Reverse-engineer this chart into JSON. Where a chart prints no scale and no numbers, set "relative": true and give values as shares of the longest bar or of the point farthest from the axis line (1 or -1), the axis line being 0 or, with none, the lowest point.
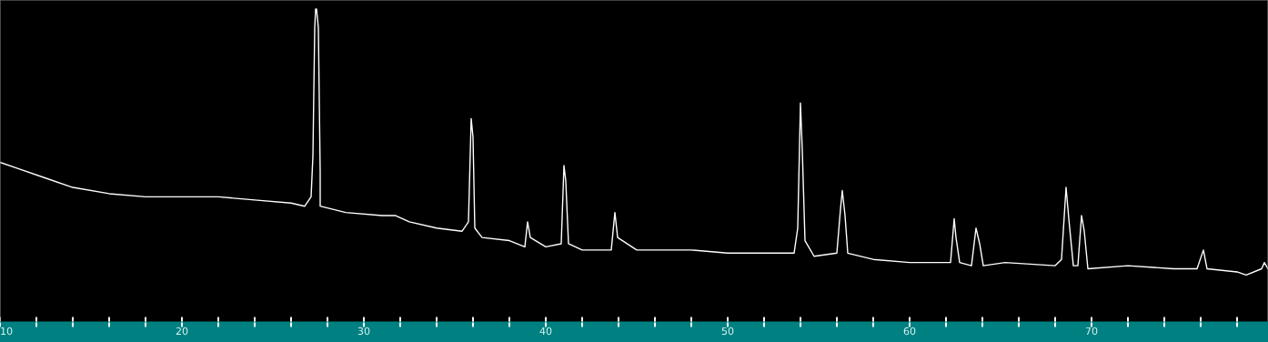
{
  "chart_data": {
    "type": "line",
    "relative": true,
    "grid": false,
    "legend": false,
    "marker": "none",
    "line_style": "solid",
    "xlim": [
      10,
      79.7
    ],
    "xticks": [
      10,
      {
        "value": 12,
        "label": null
      },
      {
        "value": 14,
        "label": null
      },
      {
        "value": 16,
        "label": null
      },
      {
        "value": 18,
        "label": null
      },
      20,
      {
        "value": 22,
        "label": null
      },
      {
        "value": 24,
        "label": null
      },
      {
        "value": 26,
        "label": null
      },
      {
        "value": 28,
        "label": null
      },
      30,
      {
        "value": 32,
        "label": null
      },
      {
        "value": 34,
        "label": null
      },
      {
        "value": 36,
        "label": null
      },
      {
        "value": 38,
        "label": null
      },
      40,
      {
        "value": 42,
        "label": null
      },
      {
        "value": 44,
        "label": null
      },
      {
        "value": 46,
        "label": null
      },
      {
        "value": 48,
        "label": null
      },
      50,
      {
        "value": 52,
        "label": null
      },
      {
        "value": 54,
        "label": null
      },
      {
        "value": 56,
        "label": null
      },
      {
        "value": 58,
        "label": null
      },
      60,
      {
        "value": 62,
        "label": null
      },
      {
        "value": 64,
        "label": null
      },
      {
        "value": 66,
        "label": null
      },
      {
        "value": 68,
        "label": null
      },
      70,
      {
        "value": 72,
        "label": null
      },
      {
        "value": 74,
        "label": null
      },
      {
        "value": 76,
        "label": null
      },
      {
        "value": 78,
        "label": null
      }
    ],
    "series": [
      {
        "color": "#ffffff",
        "x": [
          10.0,
          11.0,
          12.5,
          14.0,
          16.0,
          18.0,
          20.0,
          22.0,
          24.0,
          26.0,
          26.75,
          27.1,
          27.2,
          27.3,
          27.35,
          27.4,
          27.5,
          27.6,
          27.6,
          29.0,
          31.0,
          31.75,
          32.5,
          34.0,
          35.4,
          35.75,
          35.9,
          36.0,
          36.1,
          36.5,
          38.0,
          38.85,
          39.0,
          39.15,
          40.0,
          40.85,
          41.0,
          41.1,
          41.25,
          42.0,
          43.6,
          43.8,
          43.95,
          45.0,
          48.0,
          50.0,
          52.0,
          53.65,
          53.85,
          54.0,
          54.1,
          54.25,
          54.75,
          56.0,
          56.2,
          56.3,
          56.45,
          56.6,
          58.0,
          60.0,
          62.25,
          62.45,
          62.55,
          62.75,
          63.4,
          63.65,
          63.85,
          64.05,
          65.25,
          68.0,
          68.35,
          68.6,
          68.75,
          69.0,
          69.25,
          69.45,
          69.6,
          69.8,
          72.0,
          74.5,
          75.8,
          76.15,
          76.35,
          78.0,
          78.5,
          79.35,
          79.5,
          79.7
        ],
        "values": [
          0.51,
          0.49,
          0.46,
          0.43,
          0.41,
          0.4,
          0.4,
          0.4,
          0.39,
          0.38,
          0.37,
          0.4,
          0.53,
          0.94,
          1.0,
          1.0,
          0.94,
          0.48,
          0.37,
          0.35,
          0.34,
          0.34,
          0.32,
          0.3,
          0.29,
          0.32,
          0.65,
          0.59,
          0.3,
          0.27,
          0.26,
          0.24,
          0.32,
          0.27,
          0.24,
          0.25,
          0.5,
          0.45,
          0.25,
          0.23,
          0.23,
          0.35,
          0.27,
          0.23,
          0.23,
          0.22,
          0.22,
          0.22,
          0.3,
          0.7,
          0.55,
          0.26,
          0.21,
          0.22,
          0.36,
          0.42,
          0.34,
          0.22,
          0.2,
          0.19,
          0.19,
          0.33,
          0.27,
          0.19,
          0.18,
          0.3,
          0.25,
          0.18,
          0.19,
          0.18,
          0.2,
          0.43,
          0.33,
          0.18,
          0.18,
          0.34,
          0.29,
          0.17,
          0.18,
          0.17,
          0.17,
          0.23,
          0.17,
          0.16,
          0.15,
          0.17,
          0.19,
          0.17
        ]
      }
    ]
  }
}
